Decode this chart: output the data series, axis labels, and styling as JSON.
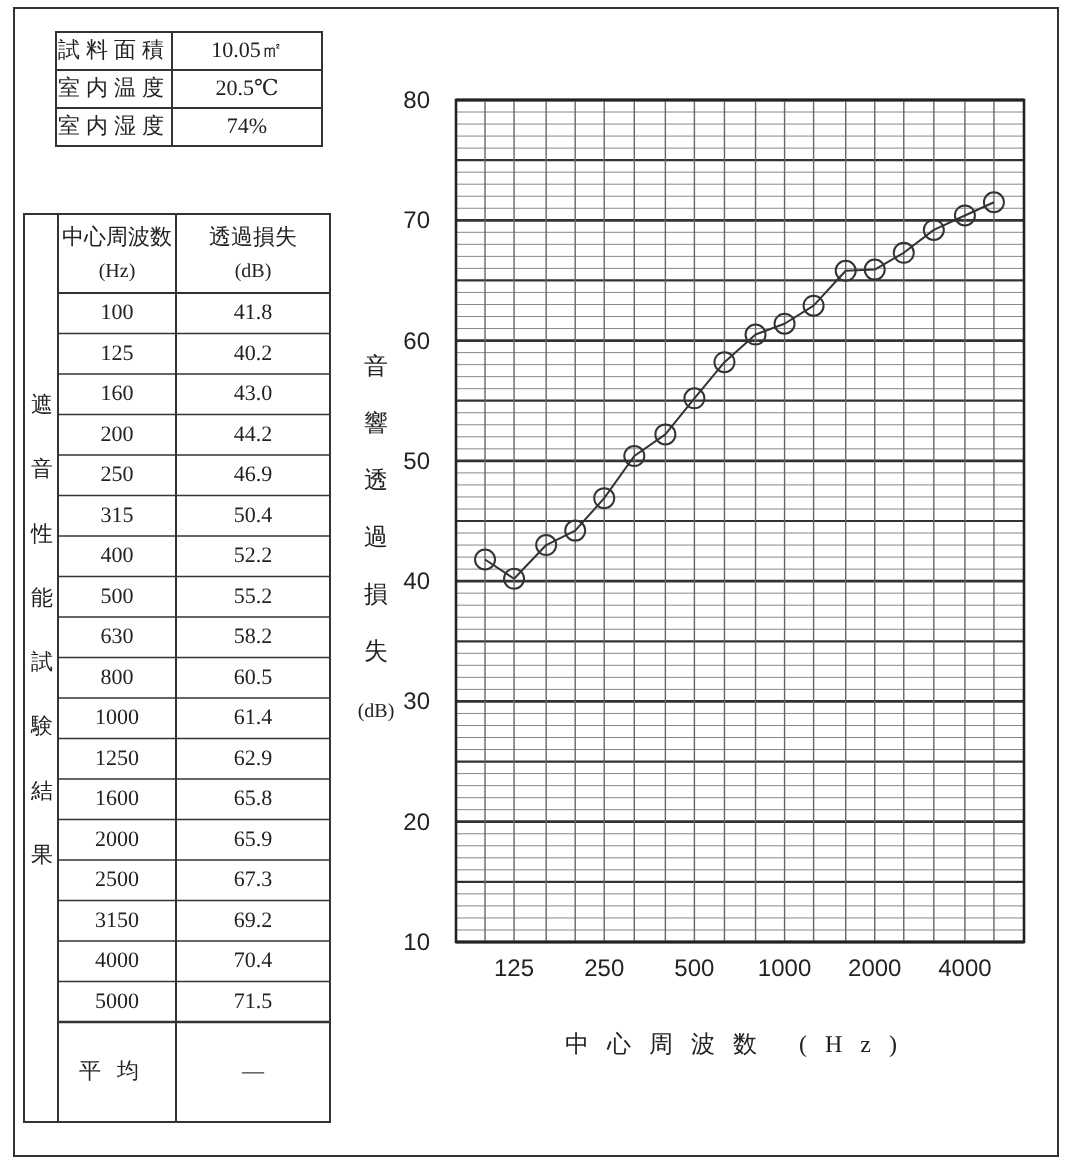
{
  "chart_data": [
    {
      "type": "other",
      "annotations": [
        "試料面積",
        "10.05㎡",
        "室内温度",
        "20.5℃",
        "室内湿度",
        "74%",
        "遮音性能試験結果",
        "中心周波数 (Hz)",
        "透過損失 (dB)",
        "100",
        "41.8",
        "125",
        "40.2",
        "160",
        "43.0",
        "200",
        "44.2",
        "250",
        "46.9",
        "315",
        "50.4",
        "400",
        "52.2",
        "500",
        "55.2",
        "630",
        "58.2",
        "800",
        "60.5",
        "1000",
        "61.4",
        "1250",
        "62.9",
        "1600",
        "65.8",
        "2000",
        "65.9",
        "2500",
        "67.3",
        "3150",
        "69.2",
        "4000",
        "70.4",
        "5000",
        "71.5",
        "平均",
        "—"
      ]
    },
    {
      "type": "line",
      "xlabel": "中心周波数 (Hz)",
      "ylabel": "音響透過損失 (dB)",
      "x": [
        100,
        125,
        160,
        200,
        250,
        315,
        400,
        500,
        630,
        800,
        1000,
        1250,
        1600,
        2000,
        2500,
        3150,
        4000,
        5000
      ],
      "series": [
        {
          "color": "#333333",
          "values": [
            41.8,
            40.2,
            43.0,
            44.2,
            46.9,
            50.4,
            52.2,
            55.2,
            58.2,
            60.5,
            61.4,
            62.9,
            65.8,
            65.9,
            67.3,
            69.2,
            70.4,
            71.5
          ]
        }
      ],
      "log": "x",
      "xlim": [
        80,
        6300
      ],
      "xticks": [
        {
          "value": 100,
          "label": null
        },
        125,
        {
          "value": 160,
          "label": null
        },
        {
          "value": 200,
          "label": null
        },
        250,
        {
          "value": 315,
          "label": null
        },
        {
          "value": 400,
          "label": null
        },
        500,
        {
          "value": 630,
          "label": null
        },
        {
          "value": 800,
          "label": null
        },
        1000,
        {
          "value": 1250,
          "label": null
        },
        {
          "value": 1600,
          "label": null
        },
        2000,
        {
          "value": 2500,
          "label": null
        },
        {
          "value": 3150,
          "label": null
        },
        4000,
        {
          "value": 5000,
          "label": null
        }
      ],
      "ylim": [
        10,
        80
      ],
      "yticks": [
        10,
        {
          "value": 11,
          "label": null
        },
        {
          "value": 12,
          "label": null
        },
        {
          "value": 13,
          "label": null
        },
        {
          "value": 14,
          "label": null
        },
        {
          "value": 15,
          "label": null
        },
        {
          "value": 16,
          "label": null
        },
        {
          "value": 17,
          "label": null
        },
        {
          "value": 18,
          "label": null
        },
        {
          "value": 19,
          "label": null
        },
        20,
        {
          "value": 21,
          "label": null
        },
        {
          "value": 22,
          "label": null
        },
        {
          "value": 23,
          "label": null
        },
        {
          "value": 24,
          "label": null
        },
        {
          "value": 25,
          "label": null
        },
        {
          "value": 26,
          "label": null
        },
        {
          "value": 27,
          "label": null
        },
        {
          "value": 28,
          "label": null
        },
        {
          "value": 29,
          "label": null
        },
        30,
        {
          "value": 31,
          "label": null
        },
        {
          "value": 32,
          "label": null
        },
        {
          "value": 33,
          "label": null
        },
        {
          "value": 34,
          "label": null
        },
        {
          "value": 35,
          "label": null
        },
        {
          "value": 36,
          "label": null
        },
        {
          "value": 37,
          "label": null
        },
        {
          "value": 38,
          "label": null
        },
        {
          "value": 39,
          "label": null
        },
        40,
        {
          "value": 41,
          "label": null
        },
        {
          "value": 42,
          "label": null
        },
        {
          "value": 43,
          "label": null
        },
        {
          "value": 44,
          "label": null
        },
        {
          "value": 45,
          "label": null
        },
        {
          "value": 46,
          "label": null
        },
        {
          "value": 47,
          "label": null
        },
        {
          "value": 48,
          "label": null
        },
        {
          "value": 49,
          "label": null
        },
        50,
        {
          "value": 51,
          "label": null
        },
        {
          "value": 52,
          "label": null
        },
        {
          "value": 53,
          "label": null
        },
        {
          "value": 54,
          "label": null
        },
        {
          "value": 55,
          "label": null
        },
        {
          "value": 56,
          "label": null
        },
        {
          "value": 57,
          "label": null
        },
        {
          "value": 58,
          "label": null
        },
        {
          "value": 59,
          "label": null
        },
        60,
        {
          "value": 61,
          "label": null
        },
        {
          "value": 62,
          "label": null
        },
        {
          "value": 63,
          "label": null
        },
        {
          "value": 64,
          "label": null
        },
        {
          "value": 65,
          "label": null
        },
        {
          "value": 66,
          "label": null
        },
        {
          "value": 67,
          "label": null
        },
        {
          "value": 68,
          "label": null
        },
        {
          "value": 69,
          "label": null
        },
        70,
        {
          "value": 71,
          "label": null
        },
        {
          "value": 72,
          "label": null
        },
        {
          "value": 73,
          "label": null
        },
        {
          "value": 74,
          "label": null
        },
        {
          "value": 75,
          "label": null
        },
        {
          "value": 76,
          "label": null
        },
        {
          "value": 77,
          "label": null
        },
        {
          "value": 78,
          "label": null
        },
        {
          "value": 79,
          "label": null
        },
        80
      ],
      "grid": true,
      "marker": "circle",
      "line_style": "solid"
    }
  ]
}
